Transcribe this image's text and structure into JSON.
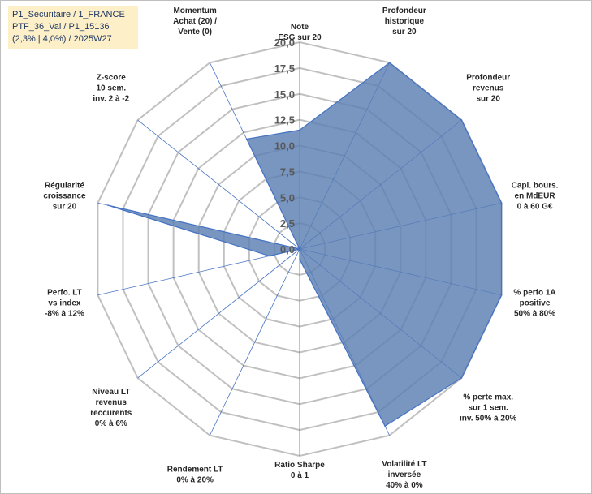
{
  "info_box": {
    "lines": [
      "P1_Securitaire / 1_FRANCE",
      "PTF_36_Val / P1_15136",
      "(2,3% | 4,0%) / 2025W27"
    ]
  },
  "colors": {
    "fill": "#5b7fb3",
    "stroke": "#4472c4",
    "grid": "#c0c0c0",
    "spoke": "#4472c4",
    "info_bg": "#fdf0c8"
  },
  "chart_data": {
    "type": "radar",
    "title": "",
    "range": [
      0,
      20
    ],
    "tick_values": [
      0,
      2.5,
      5,
      7.5,
      10,
      12.5,
      15,
      17.5,
      20
    ],
    "tick_labels": [
      "0,0",
      "2,5",
      "5,0",
      "7,5",
      "10,0",
      "12,5",
      "15,0",
      "17,5",
      "20,0"
    ],
    "grid": true,
    "axes": [
      {
        "label": [
          "Note",
          "ESG sur 20"
        ],
        "value": 11.5
      },
      {
        "label": [
          "Profondeur",
          "historique",
          "sur 20"
        ],
        "value": 20
      },
      {
        "label": [
          "Profondeur",
          "revenus",
          "sur 20"
        ],
        "value": 20
      },
      {
        "label": [
          "Capi. bours.",
          "en MdEUR",
          "0 à 60 G€"
        ],
        "value": 20
      },
      {
        "label": [
          "% perfo 1A",
          "positive",
          "50% à 80%"
        ],
        "value": 20
      },
      {
        "label": [
          "% perte max.",
          "sur 1 sem.",
          "inv. 50% à 20%"
        ],
        "value": 20
      },
      {
        "label": [
          "Volatilité LT",
          "inversée",
          "40% à 0%"
        ],
        "value": 19
      },
      {
        "label": [
          "Ratio Sharpe",
          "0 à 1"
        ],
        "value": 1
      },
      {
        "label": [
          "Rendement LT",
          "0% à 20%"
        ],
        "value": 0
      },
      {
        "label": [
          "Niveau LT",
          "revenus",
          "reccurents",
          "0% à 6%"
        ],
        "value": 0
      },
      {
        "label": [
          "Perfo. LT",
          "vs index",
          "-8% à 12%"
        ],
        "value": 3
      },
      {
        "label": [
          "Régularité",
          "croissance",
          "sur 20"
        ],
        "value": 19
      },
      {
        "label": [
          "Z-score",
          "10 sem.",
          "inv. 2 à -2"
        ],
        "value": 0
      },
      {
        "label": [
          "Momentum",
          "Achat (20) /",
          "Vente (0)"
        ],
        "value": 11.8
      }
    ]
  }
}
